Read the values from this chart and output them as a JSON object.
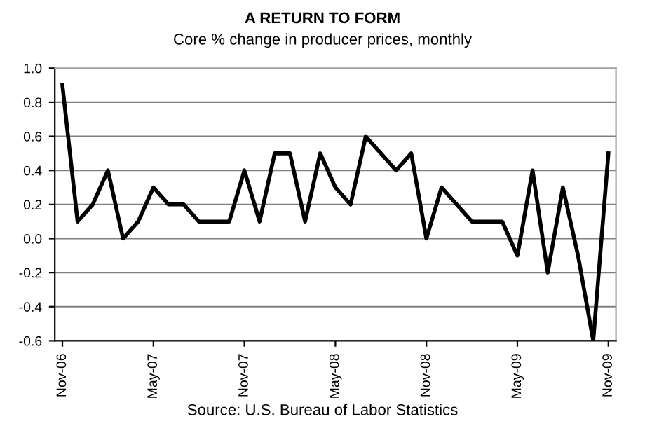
{
  "chart_data": {
    "type": "line",
    "title": "A RETURN TO FORM",
    "subtitle": "Core % change in producer prices, monthly",
    "categories": [
      "Nov-06",
      null,
      null,
      null,
      null,
      null,
      "May-07",
      null,
      null,
      null,
      null,
      null,
      "Nov-07",
      null,
      null,
      null,
      null,
      null,
      "May-08",
      null,
      null,
      null,
      null,
      null,
      "Nov-08",
      null,
      null,
      null,
      null,
      null,
      "May-09",
      null,
      null,
      null,
      null,
      null,
      "Nov-09"
    ],
    "series": [
      {
        "color": "#000000",
        "values": [
          0.9,
          0.1,
          0.2,
          0.4,
          0.0,
          0.1,
          0.3,
          0.2,
          0.2,
          0.1,
          0.1,
          0.1,
          0.4,
          0.1,
          0.5,
          0.5,
          0.1,
          0.5,
          0.3,
          0.2,
          0.6,
          0.5,
          0.4,
          0.5,
          0.0,
          0.3,
          0.2,
          0.1,
          0.1,
          0.1,
          -0.1,
          0.4,
          -0.2,
          0.3,
          -0.1,
          -0.6,
          0.5
        ]
      }
    ],
    "ylim": [
      -0.6,
      1.0
    ],
    "yticks": [
      {
        "value": -0.6,
        "label": "-0.6"
      },
      {
        "value": -0.4,
        "label": "-0.4"
      },
      {
        "value": -0.2,
        "label": "-0.2"
      },
      {
        "value": 0,
        "label": "0.0"
      },
      {
        "value": 0.2,
        "label": "0.2"
      },
      {
        "value": 0.4,
        "label": "0.4"
      },
      {
        "value": 0.6,
        "label": "0.6"
      },
      {
        "value": 0.8,
        "label": "0.8"
      },
      {
        "value": 1.0,
        "label": "1.0"
      }
    ],
    "grid": "y",
    "legend": false,
    "marker": "none",
    "line_style": "solid",
    "annotations": [
      "Source: U.S. Bureau of Labor Statistics"
    ]
  }
}
